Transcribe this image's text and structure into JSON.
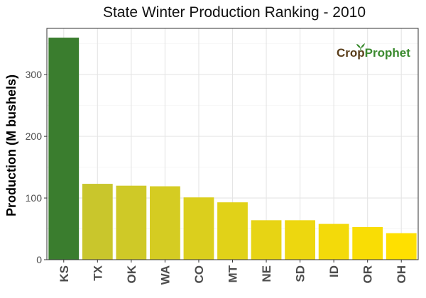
{
  "chart_data": {
    "type": "bar",
    "title": "State Winter  Production Ranking - 2010",
    "ylabel": "Production (M bushels)",
    "xlabel": "",
    "categories": [
      "KS",
      "TX",
      "OK",
      "WA",
      "CO",
      "MT",
      "NE",
      "SD",
      "ID",
      "OR",
      "OH"
    ],
    "values": [
      360,
      123,
      120,
      119,
      101,
      93,
      64,
      64,
      58,
      53,
      43
    ],
    "ylim": [
      0,
      375
    ],
    "yticks": [
      0,
      100,
      200,
      300
    ],
    "grid": true,
    "legend": "none",
    "colors": {
      "top_bar": "#3a7d2e",
      "gradient_start": "#c9c62c",
      "gradient_end": "#ffe000",
      "panel_border": "#333333",
      "grid_major": "#e5e5e5",
      "grid_minor": "#f2f2f2"
    }
  },
  "watermark": {
    "text": "CropProphet",
    "part_a": "Crop",
    "part_b": "Prophet",
    "icon": "sprout-icon"
  }
}
